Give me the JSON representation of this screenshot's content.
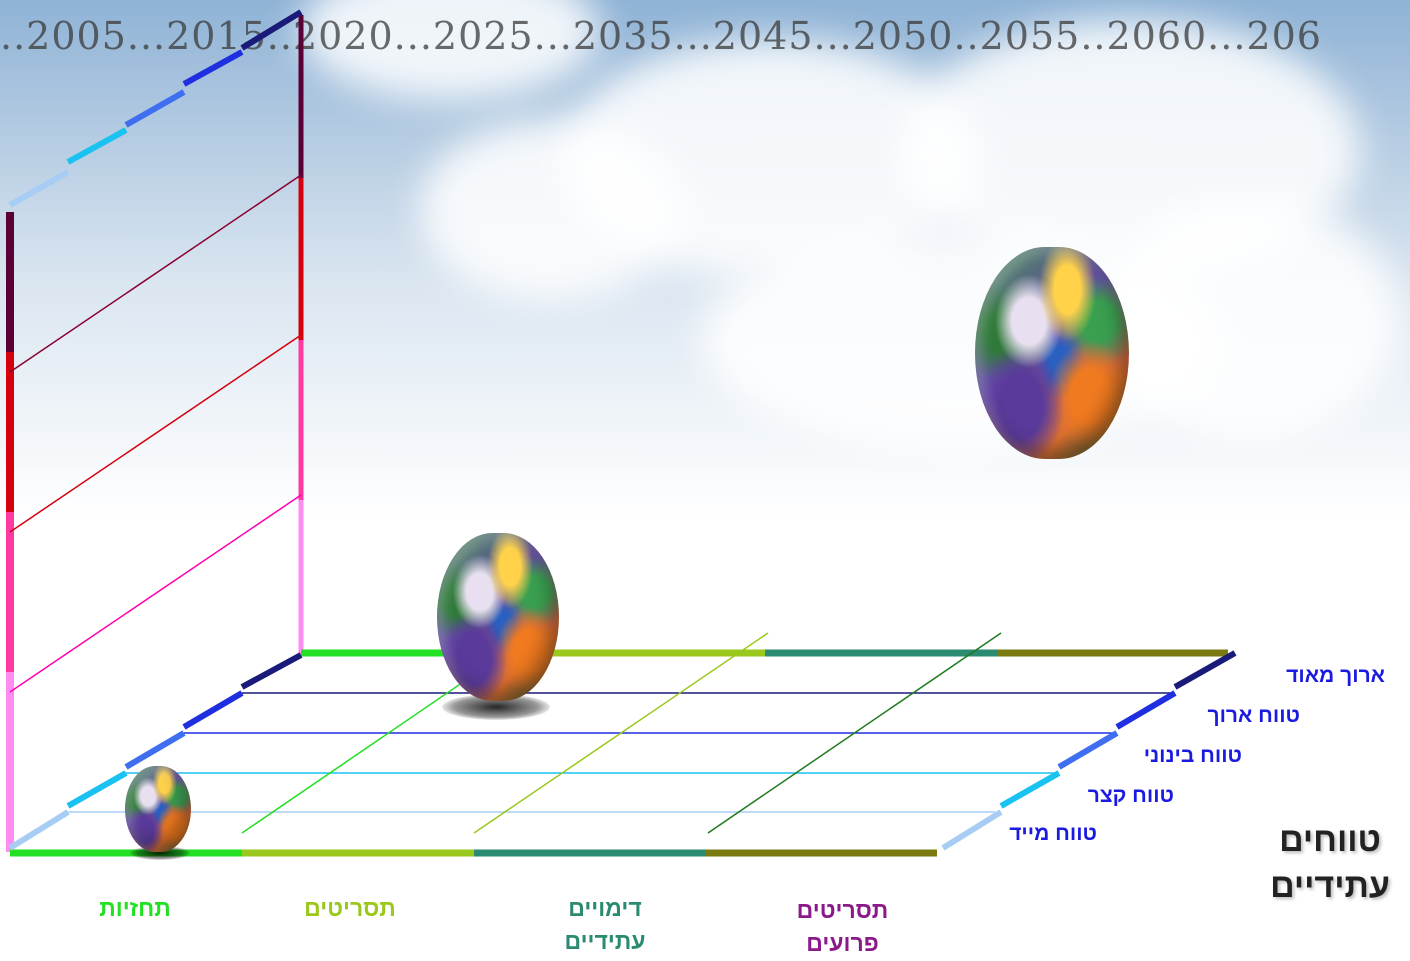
{
  "timeline": {
    "text": "..2005...2015..2020...2025...2035...2045...2050..2055..2060...206"
  },
  "title": {
    "line1": "טווחים",
    "line2": "עתידיים"
  },
  "ranges": [
    {
      "label": "ארוך מאוד",
      "color": "#1a1a7a"
    },
    {
      "label": "טווח ארוך",
      "color": "#1f2fe0"
    },
    {
      "label": "טווח בינוני",
      "color": "#3f6ff0"
    },
    {
      "label": "טווח קצר",
      "color": "#19c2f0"
    },
    {
      "label": "טווח מייד",
      "color": "#a8cdf4"
    }
  ],
  "methods": [
    {
      "lines": [
        "תחזיות"
      ],
      "color": "#22e022"
    },
    {
      "lines": [
        "תסריטים"
      ],
      "color": "#9ac81c"
    },
    {
      "lines": [
        "דימויים",
        "עתידיים"
      ],
      "color": "#2a8a72"
    },
    {
      "lines": [
        "תסריטים",
        "פרועים"
      ],
      "color": "#8a1a8a"
    }
  ],
  "vertical_scale_colors": [
    "#ff8cf0",
    "#ff3aa0",
    "#d4000e",
    "#5a0036"
  ]
}
